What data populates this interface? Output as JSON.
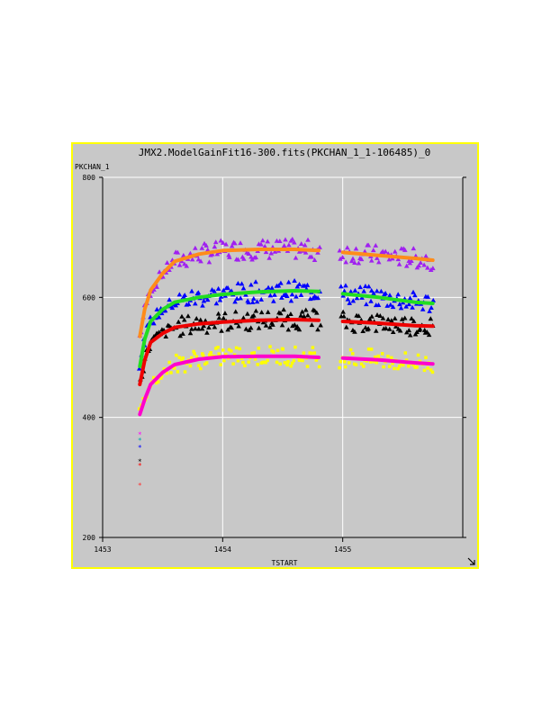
{
  "window": {
    "title": "JMX2.ModelGainFit16-300.fits(PKCHAN_1_1-106485)_0",
    "resize_icon": "resize-arrow-icon",
    "border_color": "#ffff00",
    "background_color": "#c8c8c8"
  },
  "chart_data": {
    "type": "scatter",
    "title": "JMX2.ModelGainFit16-300.fits(PKCHAN_1_1-106485)_0",
    "xlabel": "TSTART",
    "ylabel": "PKCHAN_1",
    "xlim": [
      1453,
      1456
    ],
    "ylim": [
      200,
      800
    ],
    "x_ticks": [
      "1453",
      "1454",
      "1455"
    ],
    "y_ticks": [
      "200",
      "400",
      "600",
      "800"
    ],
    "grid": true,
    "gap": [
      1454.82,
      1454.97
    ],
    "series": [
      {
        "color": "#a020f0",
        "marker": "triangle",
        "fit_color": "#ff8c1a",
        "points": [
          [
            1453.31,
            535
          ],
          [
            1453.35,
            580
          ],
          [
            1453.4,
            612
          ],
          [
            1453.5,
            640
          ],
          [
            1453.6,
            660
          ],
          [
            1453.8,
            672
          ],
          [
            1454.0,
            678
          ],
          [
            1454.3,
            680
          ],
          [
            1454.6,
            680
          ],
          [
            1454.8,
            678
          ],
          [
            1455.0,
            675
          ],
          [
            1455.3,
            670
          ],
          [
            1455.6,
            665
          ],
          [
            1455.75,
            662
          ]
        ]
      },
      {
        "color": "#0000ff",
        "marker": "triangle",
        "fit_color": "#22dd22",
        "points": [
          [
            1453.31,
            485
          ],
          [
            1453.35,
            530
          ],
          [
            1453.4,
            560
          ],
          [
            1453.5,
            580
          ],
          [
            1453.6,
            592
          ],
          [
            1453.8,
            600
          ],
          [
            1454.0,
            605
          ],
          [
            1454.3,
            609
          ],
          [
            1454.6,
            611
          ],
          [
            1454.8,
            610
          ],
          [
            1455.0,
            606
          ],
          [
            1455.3,
            600
          ],
          [
            1455.6,
            592
          ],
          [
            1455.75,
            590
          ]
        ]
      },
      {
        "color": "#000000",
        "marker": "triangle",
        "fit_color": "#ee0000",
        "points": [
          [
            1453.31,
            455
          ],
          [
            1453.35,
            495
          ],
          [
            1453.4,
            525
          ],
          [
            1453.5,
            540
          ],
          [
            1453.6,
            550
          ],
          [
            1453.8,
            556
          ],
          [
            1454.0,
            559
          ],
          [
            1454.3,
            562
          ],
          [
            1454.6,
            563
          ],
          [
            1454.8,
            562
          ],
          [
            1455.0,
            560
          ],
          [
            1455.3,
            557
          ],
          [
            1455.6,
            553
          ],
          [
            1455.75,
            552
          ]
        ]
      },
      {
        "color": "#ffff00",
        "marker": "square",
        "fit_color": "#ff00cc",
        "points": [
          [
            1453.31,
            405
          ],
          [
            1453.35,
            430
          ],
          [
            1453.4,
            455
          ],
          [
            1453.5,
            475
          ],
          [
            1453.6,
            488
          ],
          [
            1453.8,
            497
          ],
          [
            1454.0,
            501
          ],
          [
            1454.3,
            502
          ],
          [
            1454.6,
            502
          ],
          [
            1454.8,
            500
          ],
          [
            1455.0,
            499
          ],
          [
            1455.3,
            496
          ],
          [
            1455.6,
            491
          ],
          [
            1455.75,
            489
          ]
        ]
      }
    ],
    "outliers": [
      {
        "x": 1453.31,
        "y": 372,
        "color": "#ff00ff"
      },
      {
        "x": 1453.31,
        "y": 362,
        "color": "#00aaaa"
      },
      {
        "x": 1453.31,
        "y": 350,
        "color": "#0000ff"
      },
      {
        "x": 1453.31,
        "y": 327,
        "color": "#000000"
      },
      {
        "x": 1453.31,
        "y": 320,
        "color": "#ff0000"
      },
      {
        "x": 1453.31,
        "y": 287,
        "color": "#ff3333"
      }
    ]
  }
}
